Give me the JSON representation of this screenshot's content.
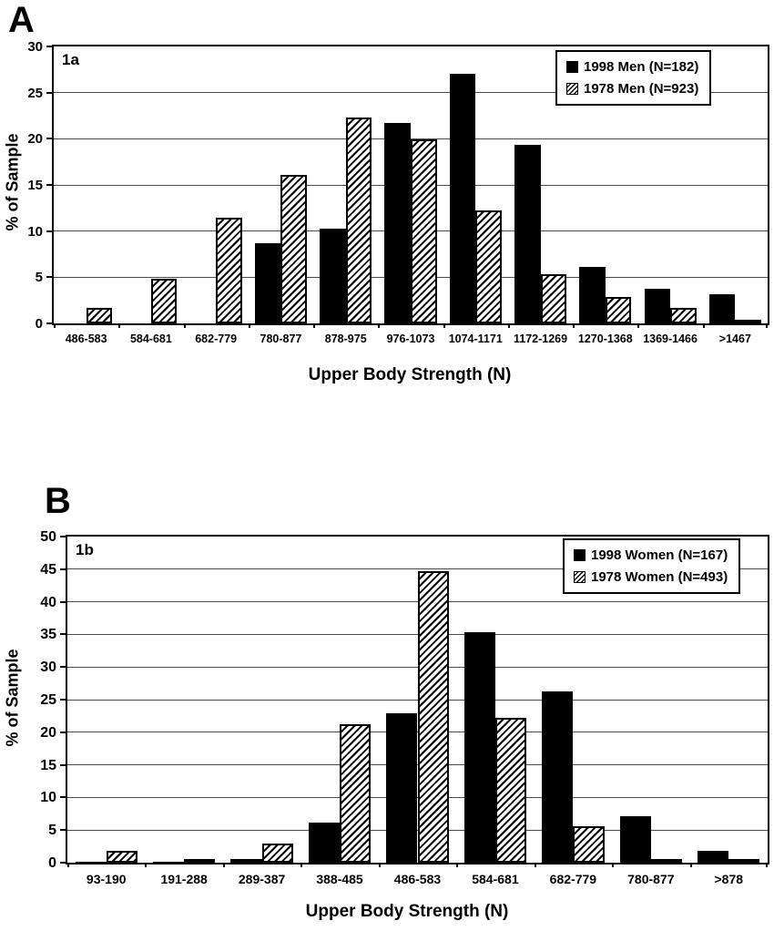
{
  "figure_background": "#ffffff",
  "ink_color": "#000000",
  "chart_data": [
    {
      "type": "bar",
      "panel_letter": "A",
      "panel_label": "1a",
      "title": "",
      "xlabel": "Upper Body Strength (N)",
      "ylabel": "% of Sample",
      "ylim": [
        0,
        30
      ],
      "ytick_step": 5,
      "grid": true,
      "legend_position": "top-right",
      "categories": [
        "486-583",
        "584-681",
        "682-779",
        "780-877",
        "878-975",
        "976-1073",
        "1074-1171",
        "1172-1269",
        "1270-1368",
        "1369-1466",
        ">1467"
      ],
      "series": [
        {
          "name": "1998 Men (N=182)",
          "pattern": "solid",
          "color": "#000000",
          "values": [
            0,
            0,
            0,
            8.7,
            10.3,
            21.7,
            27,
            19.3,
            6.1,
            3.8,
            3.2
          ]
        },
        {
          "name": "1978 Men (N=923)",
          "pattern": "hatched",
          "color": "#000000",
          "values": [
            1.7,
            4.8,
            11.4,
            16.1,
            22.3,
            19.9,
            12.2,
            5.3,
            2.9,
            1.7,
            0.4
          ]
        }
      ]
    },
    {
      "type": "bar",
      "panel_letter": "B",
      "panel_label": "1b",
      "title": "",
      "xlabel": "Upper Body Strength (N)",
      "ylabel": "% of Sample",
      "ylim": [
        0,
        50
      ],
      "ytick_step": 5,
      "grid": true,
      "legend_position": "top-right",
      "categories": [
        "93-190",
        "191-288",
        "289-387",
        "388-485",
        "486-583",
        "584-681",
        "682-779",
        "780-877",
        ">878"
      ],
      "series": [
        {
          "name": "1998 Women (N=167)",
          "pattern": "solid",
          "color": "#000000",
          "values": [
            0.2,
            0.1,
            0.6,
            6.1,
            22.9,
            35.4,
            26.3,
            7.1,
            1.8
          ]
        },
        {
          "name": "1978 Women (N=493)",
          "pattern": "hatched",
          "color": "#000000",
          "values": [
            1.8,
            0.5,
            3.0,
            21.2,
            44.7,
            22.2,
            5.6,
            0.5,
            0.5
          ]
        }
      ]
    }
  ]
}
